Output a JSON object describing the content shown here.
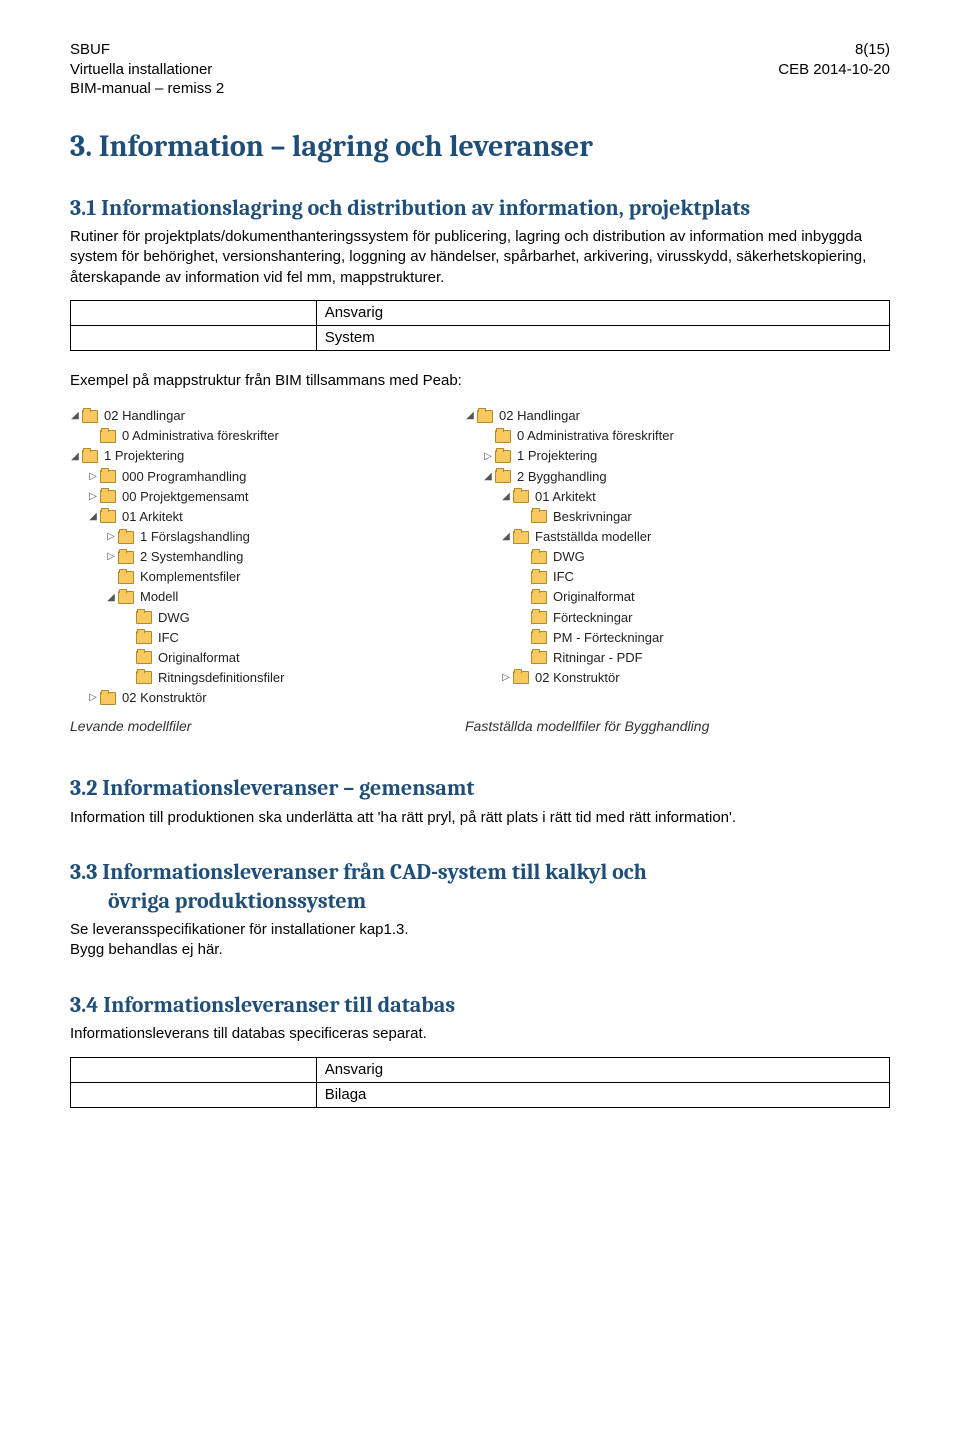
{
  "header": {
    "left_line1": "SBUF",
    "left_line2": "Virtuella installationer",
    "left_line3": "BIM-manual – remiss 2",
    "right_line1": "8(15)",
    "right_line2": "CEB 2014-10-20"
  },
  "h1": "3. Information – lagring och leveranser",
  "section31": {
    "title": "3.1 Informationslagring och distribution av information, projektplats",
    "para": "Rutiner för projektplats/dokumenthanteringssystem för publicering, lagring och distribution av information med inbyggda system för behörighet, versionshantering, loggning av händelser, spårbarhet, arkivering, virusskydd, säkerhetskopiering, återskapande av information vid fel mm, mappstrukturer.",
    "row1": "Ansvarig",
    "row2": "System",
    "example_label": "Exempel på mappstruktur från BIM tillsammans med Peab:"
  },
  "tree_left": [
    {
      "depth": 0,
      "arrow": "◢",
      "label": "02 Handlingar"
    },
    {
      "depth": 1,
      "arrow": "",
      "label": "0 Administrativa föreskrifter"
    },
    {
      "depth": 0,
      "arrow": "◢",
      "label": "1 Projektering"
    },
    {
      "depth": 1,
      "arrow": "▷",
      "label": "000 Programhandling"
    },
    {
      "depth": 1,
      "arrow": "▷",
      "label": "00 Projektgemensamt"
    },
    {
      "depth": 1,
      "arrow": "◢",
      "label": "01 Arkitekt"
    },
    {
      "depth": 2,
      "arrow": "▷",
      "label": "1 Förslagshandling"
    },
    {
      "depth": 2,
      "arrow": "▷",
      "label": "2 Systemhandling"
    },
    {
      "depth": 2,
      "arrow": "",
      "label": "Komplementsfiler"
    },
    {
      "depth": 2,
      "arrow": "◢",
      "label": "Modell"
    },
    {
      "depth": 3,
      "arrow": "",
      "label": "DWG"
    },
    {
      "depth": 3,
      "arrow": "",
      "label": "IFC"
    },
    {
      "depth": 3,
      "arrow": "",
      "label": "Originalformat"
    },
    {
      "depth": 3,
      "arrow": "",
      "label": "Ritningsdefinitionsfiler"
    },
    {
      "depth": 1,
      "arrow": "▷",
      "label": "02 Konstruktör"
    }
  ],
  "tree_right": [
    {
      "depth": 0,
      "arrow": "◢",
      "label": "02 Handlingar"
    },
    {
      "depth": 1,
      "arrow": "",
      "label": "0 Administrativa föreskrifter"
    },
    {
      "depth": 1,
      "arrow": "▷",
      "label": "1 Projektering"
    },
    {
      "depth": 1,
      "arrow": "◢",
      "label": "2 Bygghandling"
    },
    {
      "depth": 2,
      "arrow": "◢",
      "label": "01 Arkitekt"
    },
    {
      "depth": 3,
      "arrow": "",
      "label": "Beskrivningar"
    },
    {
      "depth": 2,
      "arrow": "◢",
      "label": "Fastställda modeller"
    },
    {
      "depth": 3,
      "arrow": "",
      "label": "DWG"
    },
    {
      "depth": 3,
      "arrow": "",
      "label": "IFC"
    },
    {
      "depth": 3,
      "arrow": "",
      "label": "Originalformat"
    },
    {
      "depth": 3,
      "arrow": "",
      "label": "Förteckningar"
    },
    {
      "depth": 3,
      "arrow": "",
      "label": "PM - Förteckningar"
    },
    {
      "depth": 3,
      "arrow": "",
      "label": "Ritningar - PDF"
    },
    {
      "depth": 2,
      "arrow": "▷",
      "label": "02 Konstruktör"
    }
  ],
  "caption_left": "Levande modellfiler",
  "caption_right": "Fastställda modellfiler för Bygghandling",
  "section32": {
    "title": "3.2 Informationsleveranser – gemensamt",
    "para": "Information till produktionen ska underlätta att 'ha rätt pryl, på rätt plats i rätt tid med rätt information'."
  },
  "section33": {
    "title_line1": "3.3 Informationsleveranser från CAD-system till kalkyl och",
    "title_line2": "övriga produktionssystem",
    "para1": "Se leveransspecifikationer för installationer kap1.3.",
    "para2": "Bygg behandlas ej här."
  },
  "section34": {
    "title": "3.4 Informationsleveranser till databas",
    "para": "Informationsleverans till databas specificeras separat.",
    "row1": "Ansvarig",
    "row2": "Bilaga"
  }
}
